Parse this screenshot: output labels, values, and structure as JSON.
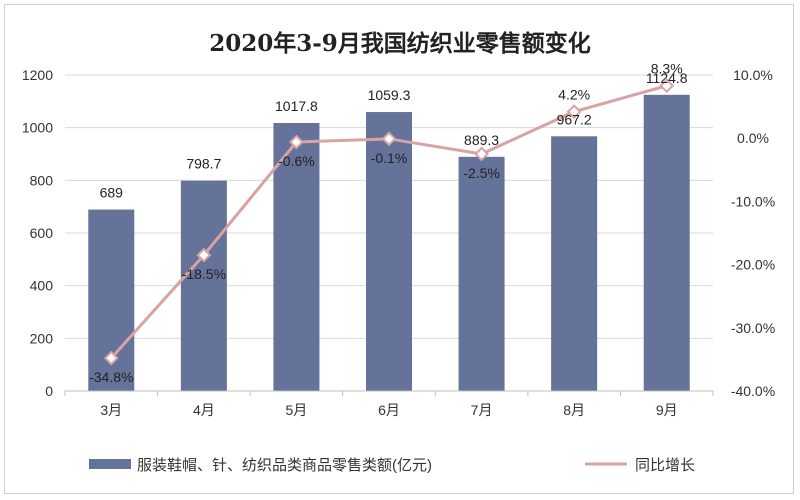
{
  "chart_data": {
    "type": "bar",
    "title": "2020年3-9月我国纺织业零售额变化",
    "categories": [
      "3月",
      "4月",
      "5月",
      "6月",
      "7月",
      "8月",
      "9月"
    ],
    "series": [
      {
        "name": "服装鞋帽、针、纺织品类商品零售类额(亿元)",
        "type": "bar",
        "axis": "left",
        "color": "#65729a",
        "values": [
          689,
          798.7,
          1017.8,
          1059.3,
          889.3,
          967.2,
          1124.8
        ],
        "labels": [
          "689",
          "798.7",
          "1017.8",
          "1059.3",
          "889.3",
          "967.2",
          "1124.8"
        ]
      },
      {
        "name": "同比增长",
        "type": "line",
        "axis": "right",
        "color": "#d7a3a3",
        "values": [
          -34.8,
          -18.5,
          -0.6,
          -0.1,
          -2.5,
          4.2,
          8.3
        ],
        "labels": [
          "-34.8%",
          "-18.5%",
          "-0.6%",
          "-0.1%",
          "-2.5%",
          "4.2%",
          "8.3%"
        ]
      }
    ],
    "y_left": {
      "min": 0,
      "max": 1200,
      "ticks": [
        "0",
        "200",
        "400",
        "600",
        "800",
        "1000",
        "1200"
      ]
    },
    "y_right": {
      "min": -40,
      "max": 10,
      "ticks": [
        "-40.0%",
        "-30.0%",
        "-20.0%",
        "-10.0%",
        "0.0%",
        "10.0%"
      ]
    },
    "grid": true,
    "legend_position": "bottom"
  }
}
